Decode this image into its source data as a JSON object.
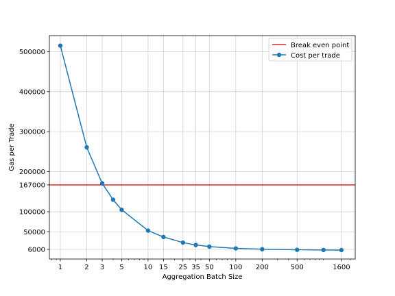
{
  "chart_data": {
    "type": "line",
    "xlabel": "Aggregation Batch Size",
    "ylabel": "Gas per Trade",
    "x_scale": "log",
    "xlim": [
      0.75,
      2300
    ],
    "ylim": [
      -18000,
      540000
    ],
    "grid": true,
    "legend_position": "top-right",
    "x_ticks": [
      1,
      2,
      3,
      5,
      10,
      15,
      25,
      35,
      50,
      100,
      200,
      500,
      1600
    ],
    "x_tick_labels": [
      "1",
      "2",
      "3",
      "5",
      "10",
      "15",
      "25",
      "35",
      "50",
      "100",
      "200",
      "500",
      "1600"
    ],
    "y_ticks": [
      6000,
      50000,
      100000,
      167000,
      200000,
      300000,
      400000,
      500000
    ],
    "y_tick_labels": [
      "6000",
      "50000",
      "100000",
      "167000",
      "200000",
      "300000",
      "400000",
      "500000"
    ],
    "reference_line": {
      "name": "Break even point",
      "y": 167000,
      "color": "#d62728"
    },
    "series": [
      {
        "name": "Cost per trade",
        "color": "#1f77b4",
        "x": [
          1,
          2,
          3,
          4,
          5,
          10,
          15,
          25,
          35,
          50,
          100,
          200,
          500,
          1000,
          1600
        ],
        "y": [
          515000,
          261000,
          171000,
          130000,
          105000,
          53000,
          37000,
          23000,
          17000,
          13000,
          8500,
          6500,
          5000,
          4500,
          4300
        ]
      }
    ]
  }
}
